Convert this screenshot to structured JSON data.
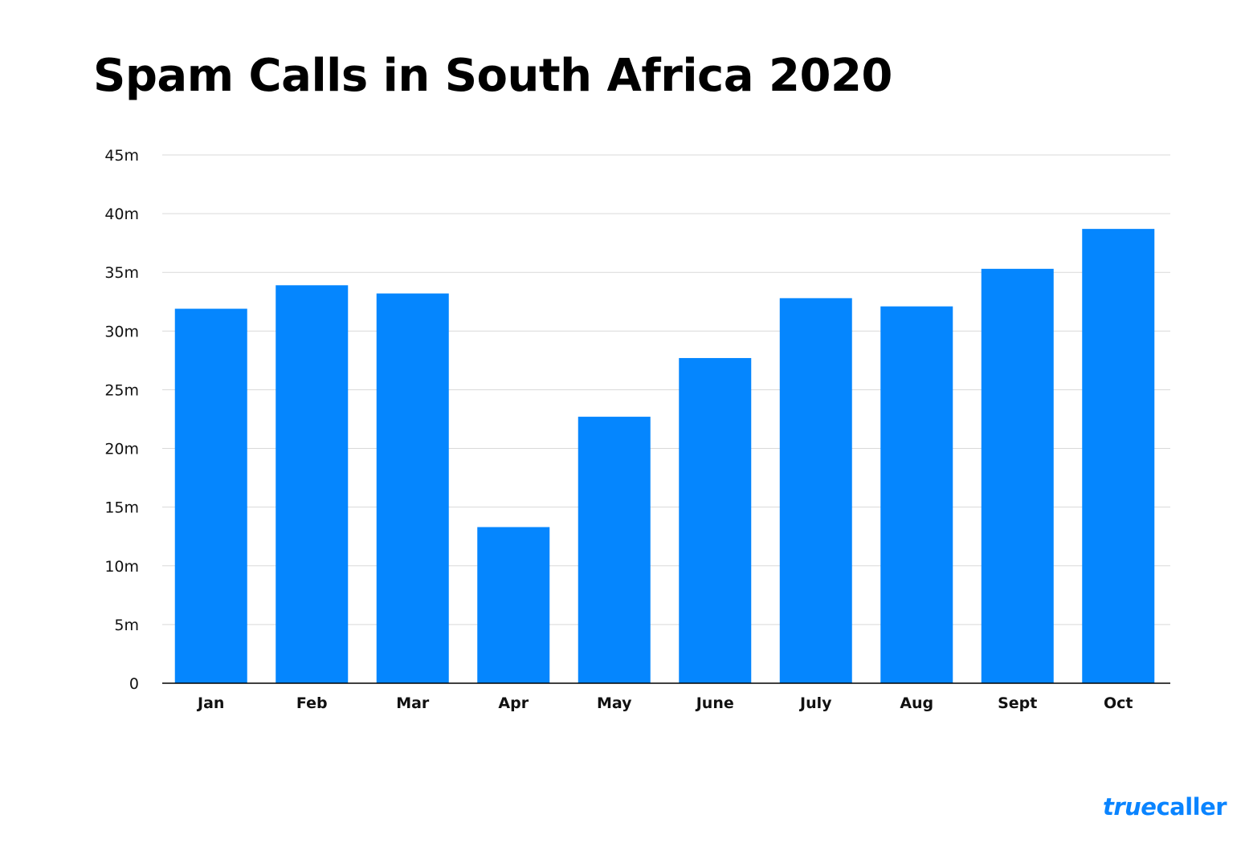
{
  "chart_data": {
    "type": "bar",
    "title": "Spam Calls in South Africa 2020",
    "categories": [
      "Jan",
      "Feb",
      "Mar",
      "Apr",
      "May",
      "June",
      "July",
      "Aug",
      "Sept",
      "Oct"
    ],
    "values": [
      31.9,
      33.9,
      33.2,
      13.3,
      22.7,
      27.7,
      32.8,
      32.1,
      35.3,
      38.7
    ],
    "unit": "m",
    "xlabel": "",
    "ylabel": "",
    "ylim": [
      0,
      45
    ],
    "yticks": [
      0,
      5,
      10,
      15,
      20,
      25,
      30,
      35,
      40,
      45
    ],
    "ytick_labels": [
      "0",
      "5m",
      "10m",
      "15m",
      "20m",
      "25m",
      "30m",
      "35m",
      "40m",
      "45m"
    ],
    "grid": true,
    "legend": "none",
    "bar_color": "#0586fe",
    "grid_color": "#d9d9d9"
  },
  "logo": {
    "text_italic": "true",
    "text_rest": "caller",
    "color": "#0a84ff"
  }
}
